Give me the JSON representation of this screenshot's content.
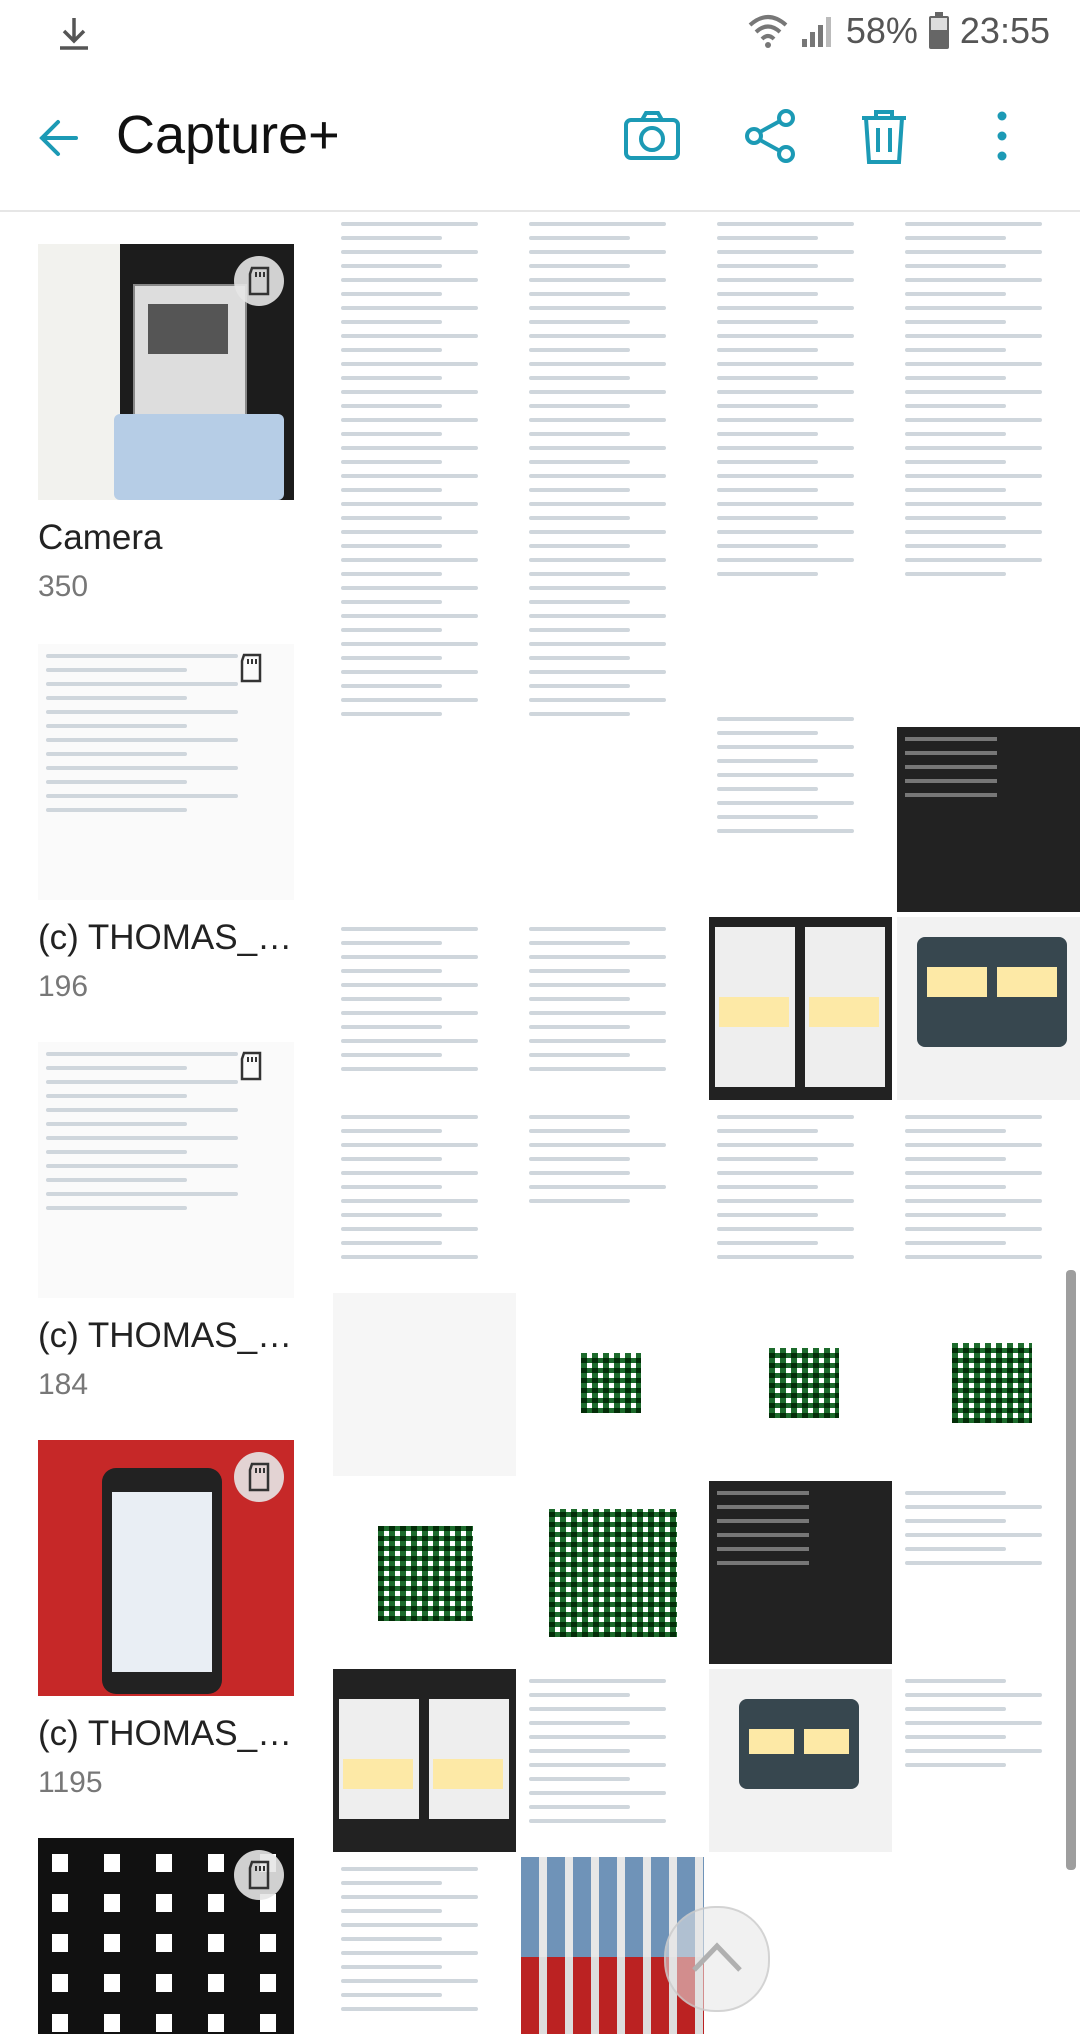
{
  "status_bar": {
    "battery": "58%",
    "time": "23:55",
    "icons": [
      "download-icon",
      "wifi-icon",
      "signal-icon",
      "battery-icon"
    ]
  },
  "app_bar": {
    "title": "Capture+",
    "actions": [
      "camera-icon",
      "share-icon",
      "delete-icon",
      "more-icon"
    ]
  },
  "albums": [
    {
      "name": "Camera",
      "count": "350"
    },
    {
      "name": "(c) THOMAS_CATALANO",
      "count": "196"
    },
    {
      "name": "(c) THOMAS_CATALANO",
      "count": "184"
    },
    {
      "name": "(c) THOMAS_CATALANO",
      "count": "1195"
    },
    {
      "name": "",
      "count": ""
    }
  ],
  "colors": {
    "accent": "#1c9ab5",
    "divider": "#e6e6e6"
  }
}
